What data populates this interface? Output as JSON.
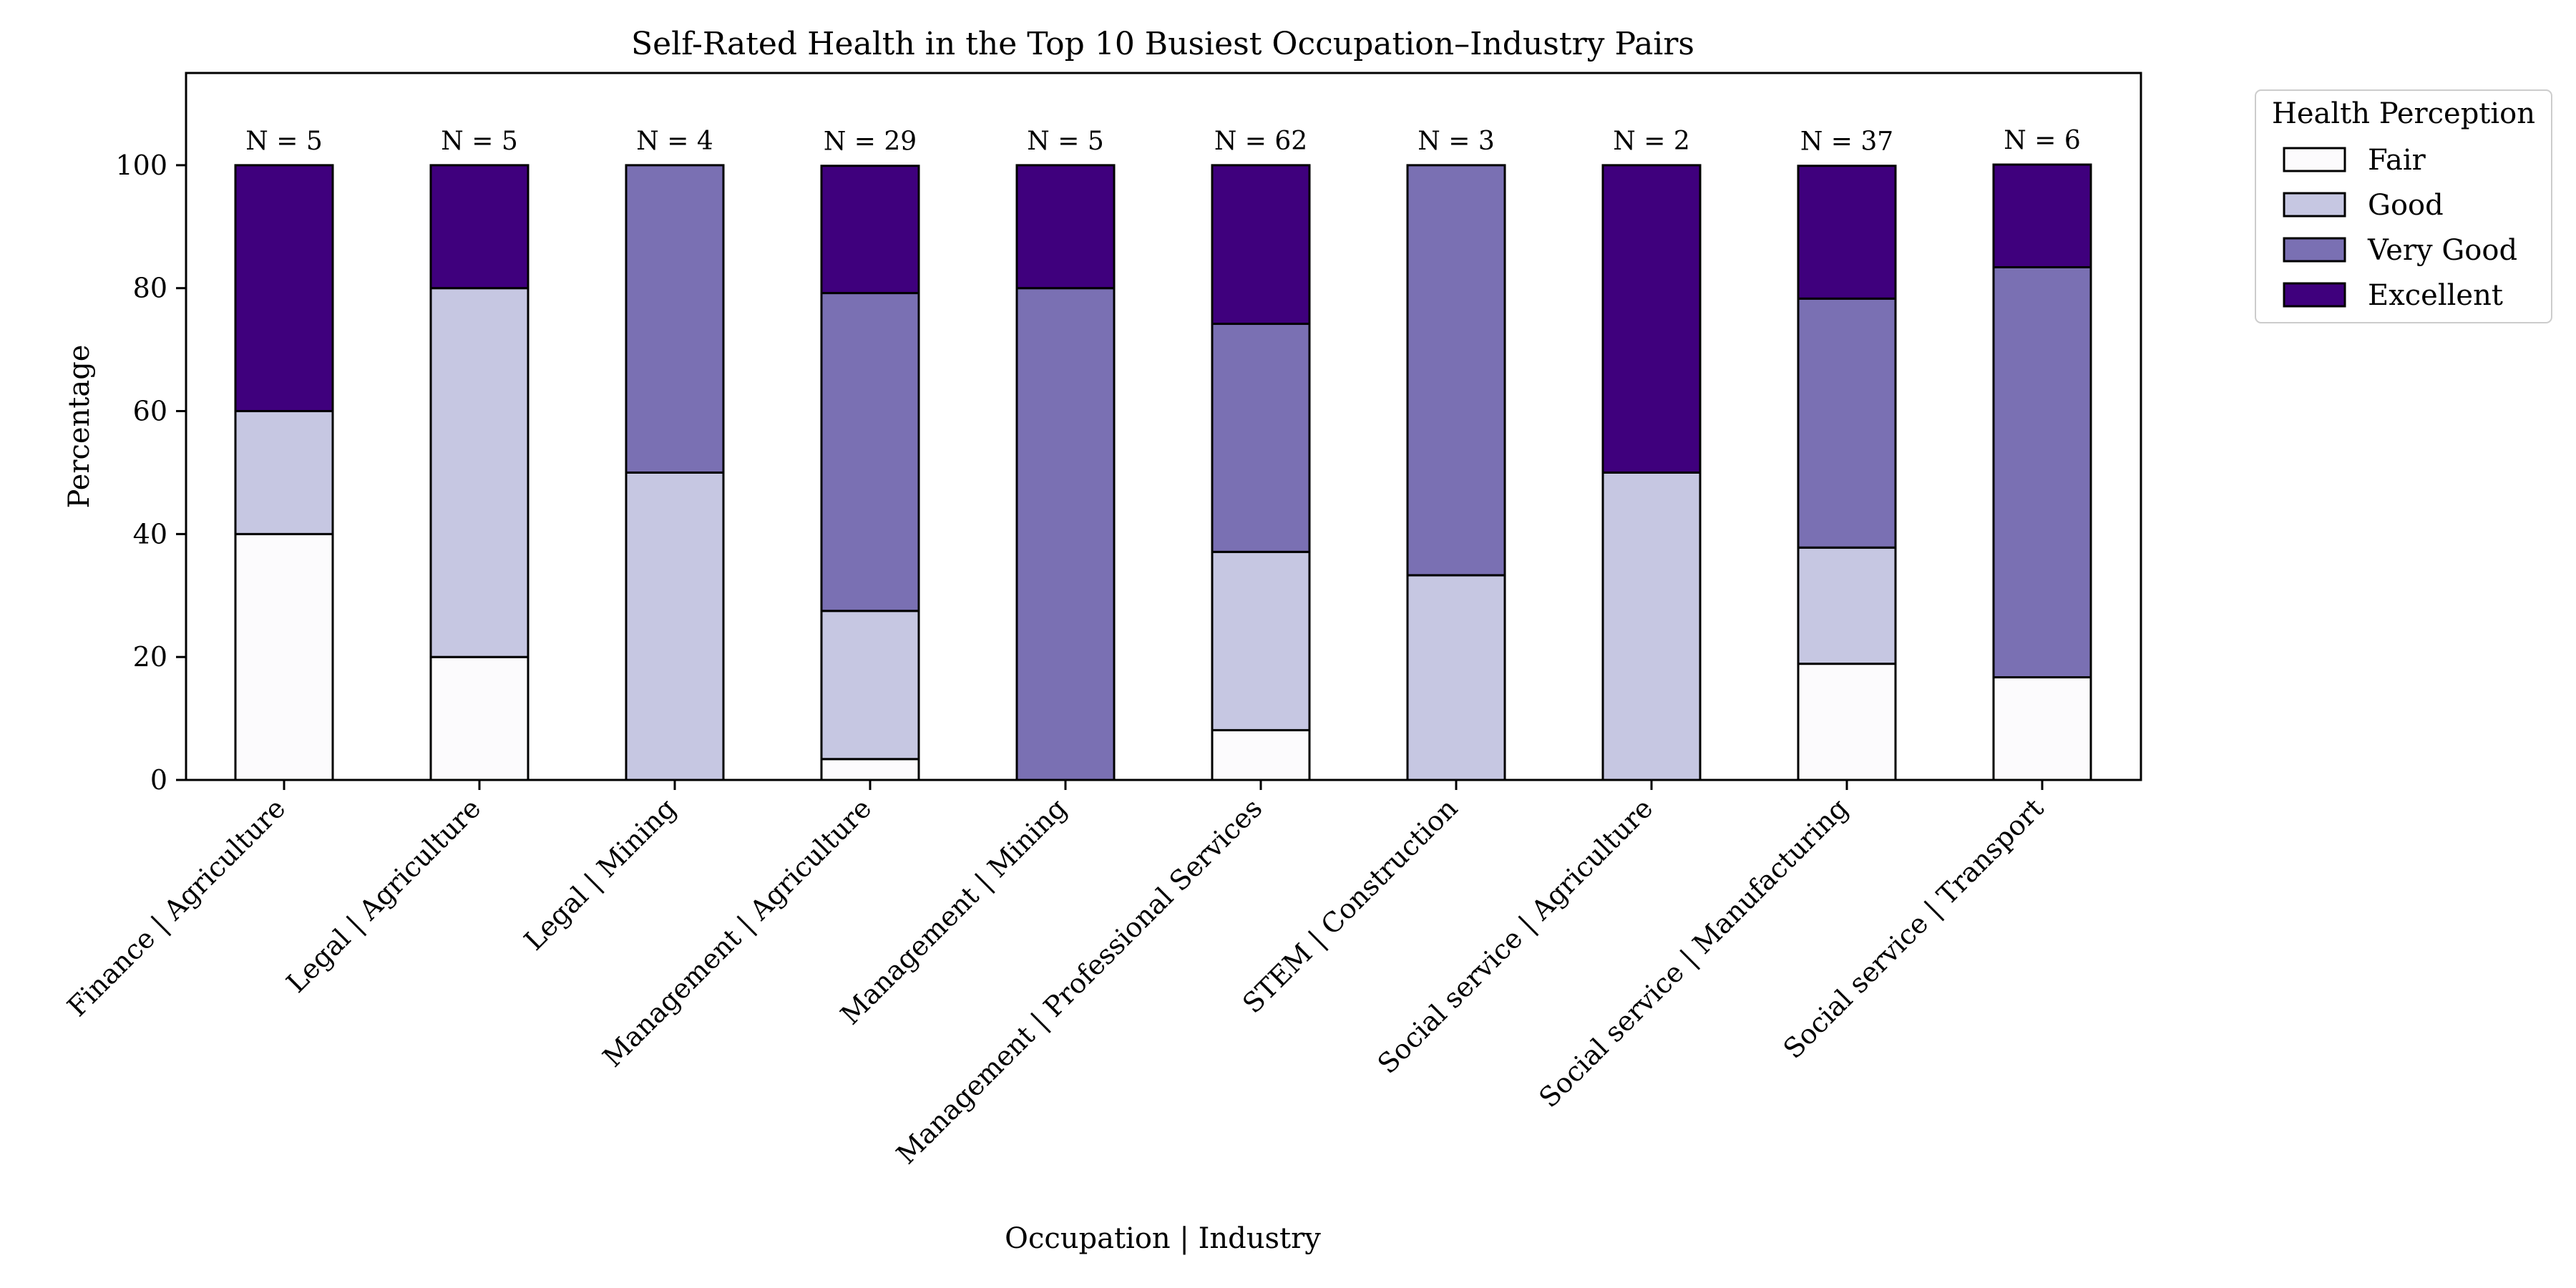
{
  "chart_data": {
    "type": "bar",
    "stacked": true,
    "title": "Self-Rated Health in the Top 10 Busiest Occupation–Industry Pairs",
    "xlabel": "Occupation | Industry",
    "ylabel": "Percentage",
    "ylim": [
      0,
      115
    ],
    "yticks": [
      0,
      20,
      40,
      60,
      80,
      100
    ],
    "grid": false,
    "legend": {
      "title": "Health Perception",
      "placement": "outside-top-right"
    },
    "categories": [
      "Finance | Agriculture",
      "Legal | Agriculture",
      "Legal | Mining",
      "Management | Agriculture",
      "Management | Mining",
      "Management | Professional Services",
      "STEM | Construction",
      "Social service | Agriculture",
      "Social service | Manufacturing",
      "Social service | Transport"
    ],
    "n_labels": [
      "N = 5",
      "N = 5",
      "N = 4",
      "N = 29",
      "N = 5",
      "N = 62",
      "N = 3",
      "N = 2",
      "N = 37",
      "N = 6"
    ],
    "series": [
      {
        "name": "Fair",
        "color": "#fcfbfd",
        "values": [
          40,
          20,
          0,
          3.4,
          0,
          8.1,
          0,
          0,
          18.9,
          16.7
        ]
      },
      {
        "name": "Good",
        "color": "#c6c7e2",
        "values": [
          20,
          60,
          50,
          24.1,
          0,
          29.0,
          33.3,
          50,
          18.9,
          0
        ]
      },
      {
        "name": "Very Good",
        "color": "#7a70b3",
        "values": [
          0,
          0,
          50,
          51.7,
          80,
          37.1,
          66.7,
          0,
          40.5,
          66.7
        ]
      },
      {
        "name": "Excellent",
        "color": "#3f007d",
        "values": [
          40,
          20,
          0,
          20.7,
          20,
          25.8,
          0,
          50,
          21.6,
          16.7
        ]
      }
    ]
  }
}
